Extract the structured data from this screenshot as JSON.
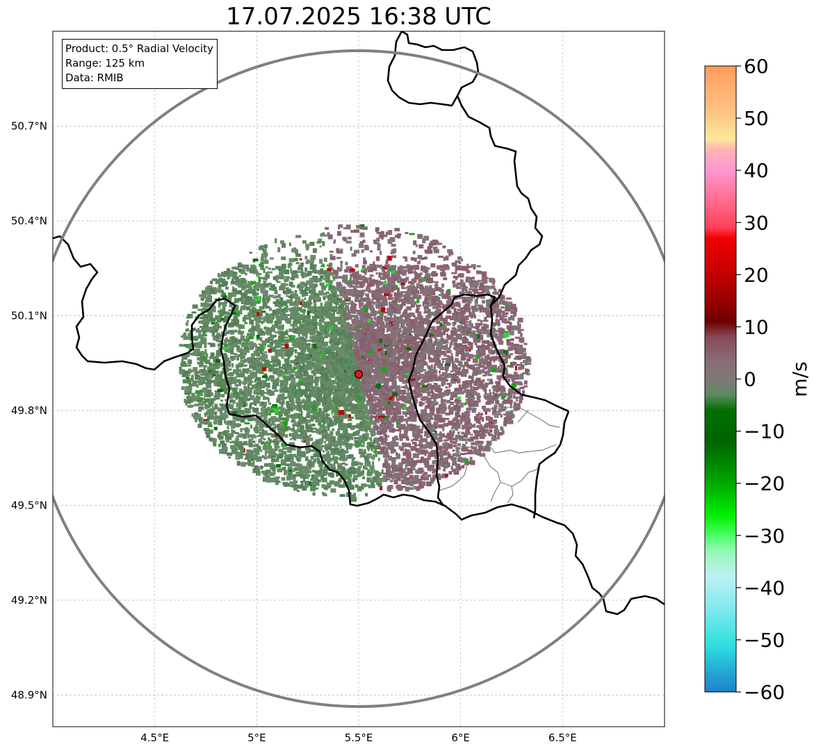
{
  "title": "17.07.2025 16:38 UTC",
  "info_box": {
    "product": "Product: 0.5° Radial Velocity",
    "range": "Range: 125 km",
    "data": "Data: RMIB"
  },
  "map": {
    "lon_range": [
      4.0,
      7.0
    ],
    "lat_range": [
      48.8,
      51.0
    ],
    "lon_ticks": [
      {
        "value": 4.5,
        "label": "4.5°E"
      },
      {
        "value": 5.0,
        "label": "5°E"
      },
      {
        "value": 5.5,
        "label": "5.5°E"
      },
      {
        "value": 6.0,
        "label": "6°E"
      },
      {
        "value": 6.5,
        "label": "6.5°E"
      }
    ],
    "lat_ticks": [
      {
        "value": 50.7,
        "label": "50.7°N"
      },
      {
        "value": 50.4,
        "label": "50.4°N"
      },
      {
        "value": 50.1,
        "label": "50.1°N"
      },
      {
        "value": 49.8,
        "label": "49.8°N"
      },
      {
        "value": 49.5,
        "label": "49.5°N"
      },
      {
        "value": 49.2,
        "label": "49.2°N"
      },
      {
        "value": 48.9,
        "label": "48.9°N"
      }
    ],
    "gridlines": true,
    "radar_site": {
      "lon": 5.5,
      "lat": 49.915,
      "color": "#e8141c"
    },
    "range_ring_color": "#808080",
    "border_color": "#000000",
    "subdivision_color": "#808080"
  },
  "colorbar": {
    "label": "m/s",
    "ticks": [
      60,
      50,
      40,
      30,
      20,
      10,
      0,
      -10,
      -20,
      -30,
      -40,
      -50,
      -60
    ],
    "tick_labels": [
      "60",
      "50",
      "40",
      "30",
      "20",
      "10",
      "0",
      "−10",
      "−20",
      "−30",
      "−40",
      "−50",
      "−60"
    ],
    "color_stops": [
      {
        "value": 60,
        "color": "#ff9c5c"
      },
      {
        "value": 52,
        "color": "#ffbe80"
      },
      {
        "value": 46,
        "color": "#ffe89a"
      },
      {
        "value": 44,
        "color": "#ffb4b4"
      },
      {
        "value": 40,
        "color": "#ff96d2"
      },
      {
        "value": 34,
        "color": "#ff6a8a"
      },
      {
        "value": 29,
        "color": "#ff4058"
      },
      {
        "value": 27,
        "color": "#f00000"
      },
      {
        "value": 20,
        "color": "#c20000"
      },
      {
        "value": 14,
        "color": "#8e0000"
      },
      {
        "value": 11,
        "color": "#6e0000"
      },
      {
        "value": 8,
        "color": "#864a56"
      },
      {
        "value": 4,
        "color": "#8a6a74"
      },
      {
        "value": 0,
        "color": "#7e7878"
      },
      {
        "value": -3,
        "color": "#5f8a62"
      },
      {
        "value": -6,
        "color": "#007000"
      },
      {
        "value": -12,
        "color": "#006400"
      },
      {
        "value": -20,
        "color": "#00a800"
      },
      {
        "value": -26,
        "color": "#00ee00"
      },
      {
        "value": -30,
        "color": "#4aff64"
      },
      {
        "value": -33,
        "color": "#96f8b8"
      },
      {
        "value": -38,
        "color": "#bdf0f4"
      },
      {
        "value": -44,
        "color": "#82e8ec"
      },
      {
        "value": -51,
        "color": "#2ee0e0"
      },
      {
        "value": -55,
        "color": "#26b4d8"
      },
      {
        "value": -60,
        "color": "#2080c8"
      }
    ]
  }
}
